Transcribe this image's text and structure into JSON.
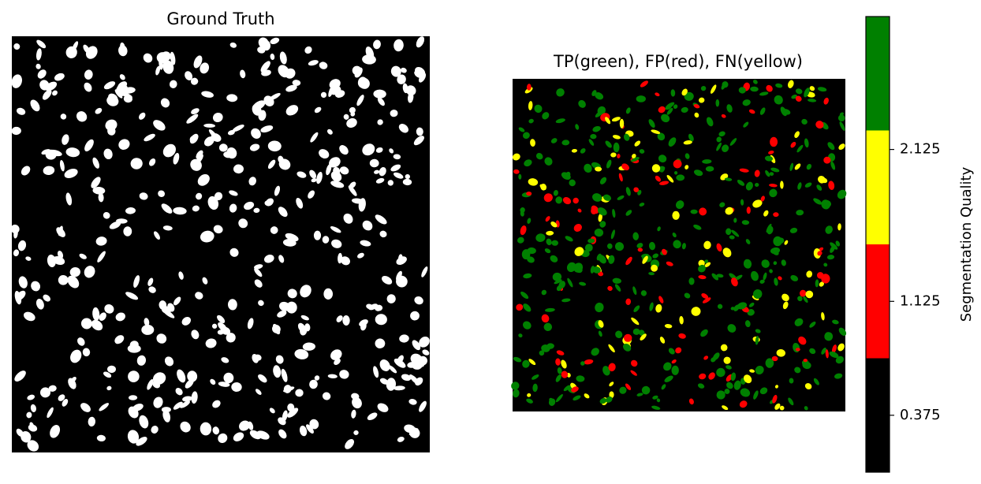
{
  "chart_data": [
    {
      "type": "heatmap",
      "title": "Ground Truth",
      "colors": {
        "background": "#000000",
        "foreground": "#ffffff"
      },
      "axes": "off"
    },
    {
      "type": "heatmap",
      "title": "TP(green), FP(red), FN(yellow)",
      "axes": "off",
      "categories": [
        "Background",
        "FP",
        "FN",
        "TP"
      ],
      "category_colors": [
        "#000000",
        "#ff0000",
        "#ffff00",
        "#008000"
      ],
      "colorbar": {
        "label": "Segmentation Quality",
        "range": [
          0,
          3
        ],
        "boundaries": [
          0,
          0.75,
          1.5,
          2.25,
          3
        ],
        "ticks": [
          0.375,
          1.125,
          2.125
        ],
        "tick_labels": [
          "0.375",
          "1.125",
          "2.125"
        ],
        "colors": [
          "#000000",
          "#ff0000",
          "#ffff00",
          "#008000"
        ]
      }
    }
  ]
}
